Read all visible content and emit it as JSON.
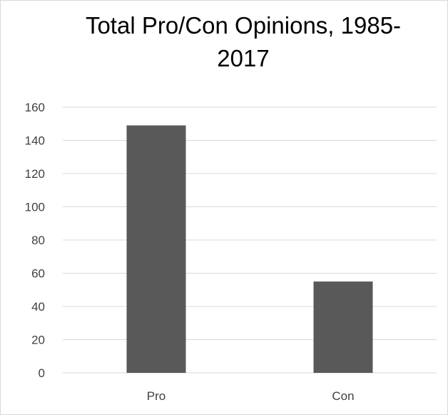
{
  "chart_data": {
    "type": "bar",
    "title": "Total Pro/Con Opinions, 1985-2017",
    "title_line1": "Total Pro/Con Opinions, 1985-",
    "title_line2": "2017",
    "categories": [
      "Pro",
      "Con"
    ],
    "values": [
      149,
      55
    ],
    "xlabel": "",
    "ylabel": "",
    "ylim": [
      0,
      160
    ],
    "yticks": [
      "0",
      "20",
      "40",
      "60",
      "80",
      "100",
      "120",
      "140",
      "160"
    ],
    "ytick_values": [
      0,
      20,
      40,
      60,
      80,
      100,
      120,
      140,
      160
    ],
    "grid": true,
    "legend": "none",
    "bar_color": "#595959",
    "grid_color": "#d9d9d9"
  }
}
